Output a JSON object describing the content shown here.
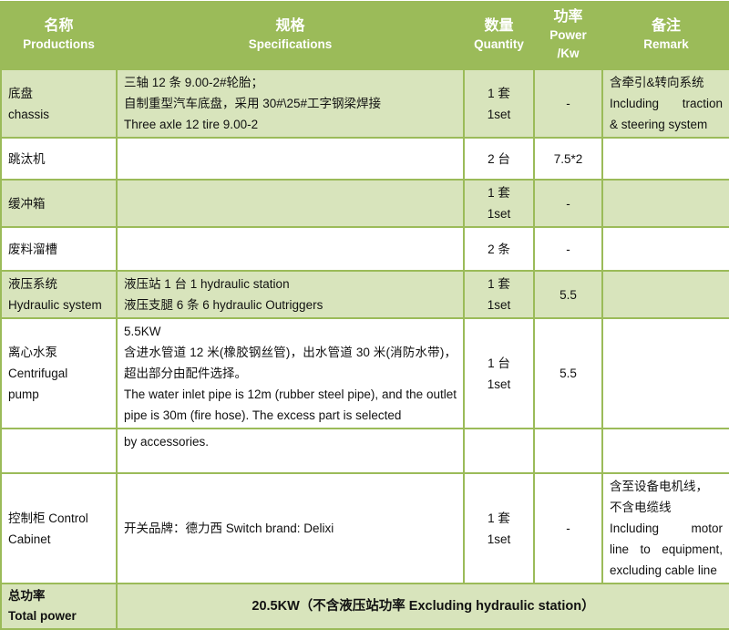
{
  "header": {
    "name_cn": "名称",
    "name_en": "Productions",
    "spec_cn": "规格",
    "spec_en": "Specifications",
    "qty_cn": "数量",
    "qty_en": "Quantity",
    "power_cn": "功率",
    "power_en": "Power",
    "power_unit": "/Kw",
    "remark_cn": "备注",
    "remark_en": "Remark"
  },
  "rows": [
    {
      "name": [
        "底盘",
        "chassis"
      ],
      "spec": [
        "三轴 12 条 9.00-2#轮胎；",
        "自制重型汽车底盘，采用 30#\\25#工字钢梁焊接",
        "Three axle 12 tire 9.00-2"
      ],
      "qty": [
        "1 套",
        "1set"
      ],
      "power": "-",
      "remark": [
        "含牵引&转向系统",
        "Including traction",
        "& steering system"
      ]
    },
    {
      "name": [
        "跳汰机"
      ],
      "spec": [],
      "qty": [
        "2 台"
      ],
      "power": "7.5*2",
      "remark": []
    },
    {
      "name": [
        "缓冲箱"
      ],
      "spec": [],
      "qty": [
        "1 套",
        "1set"
      ],
      "power": "-",
      "remark": []
    },
    {
      "name": [
        "废料溜槽"
      ],
      "spec": [],
      "qty": [
        "2 条"
      ],
      "power": "-",
      "remark": []
    },
    {
      "name": [
        "液压系统",
        "Hydraulic system"
      ],
      "spec": [
        "液压站 1 台 1 hydraulic station",
        "液压支腿 6 条 6 hydraulic Outriggers"
      ],
      "qty": [
        "1 套",
        "1set"
      ],
      "power": "5.5",
      "remark": []
    },
    {
      "name": [
        "离心水泵",
        "Centrifugal",
        "pump"
      ],
      "spec": [
        "5.5KW",
        "含进水管道 12 米(橡胶钢丝管)，出水管道 30 米(消防水带)，超出部分由配件选择。",
        "The water inlet pipe is 12m (rubber steel pipe), and the outlet pipe is 30m (fire hose). The excess part is selected"
      ],
      "qty": [
        "1 台",
        "1set"
      ],
      "power": "5.5",
      "remark": []
    },
    {
      "name": [],
      "spec": [
        "by accessories."
      ],
      "qty": [],
      "power": "",
      "remark": []
    },
    {
      "name": [
        "控制柜 Control",
        "Cabinet"
      ],
      "spec": [
        "开关品牌：德力西 Switch brand: Delixi"
      ],
      "qty": [
        "1 套",
        "1set"
      ],
      "power": "-",
      "remark": [
        "含至设备电机线，",
        "不含电缆线",
        "Including motor",
        "line to equipment,",
        "excluding cable line"
      ]
    }
  ],
  "total": {
    "label_cn": "总功率",
    "label_en": "Total power",
    "value": "20.5KW（不含液压站功率 Excluding hydraulic station）"
  },
  "colors": {
    "header": "#9bbb59",
    "row_alt": "#d8e4bc",
    "border": "#9bbb59"
  }
}
